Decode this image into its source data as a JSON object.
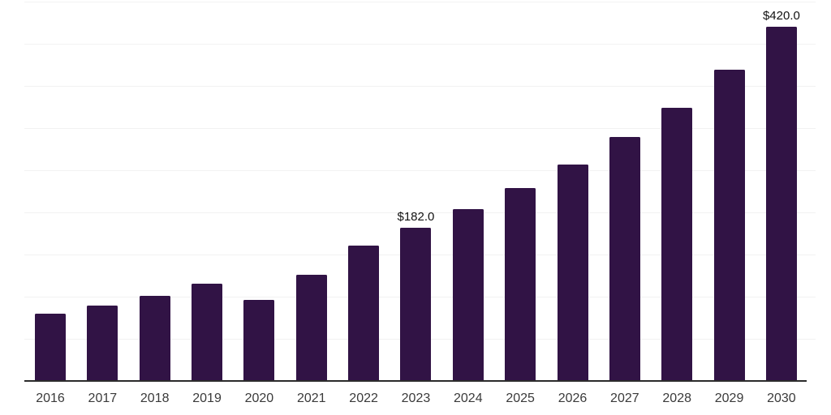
{
  "chart_data": {
    "type": "bar",
    "title": "",
    "xlabel": "",
    "ylabel": "",
    "categories": [
      "2016",
      "2017",
      "2018",
      "2019",
      "2020",
      "2021",
      "2022",
      "2023",
      "2024",
      "2025",
      "2026",
      "2027",
      "2028",
      "2029",
      "2030"
    ],
    "values": [
      80,
      89,
      101,
      115,
      96,
      126,
      161,
      182,
      204,
      229,
      257,
      289,
      324,
      369,
      420
    ],
    "bar_labels": [
      null,
      null,
      null,
      null,
      null,
      null,
      null,
      "$182.0",
      null,
      null,
      null,
      null,
      null,
      null,
      "$420.0"
    ],
    "ylim": [
      0,
      450
    ],
    "gridline_step": 50,
    "grid": "horizontal",
    "legend": "none",
    "y_axis_ticks_visible": false,
    "colors": {
      "bar": "#311345",
      "axis_line": "#2b2b2b",
      "gridline": "#f2f2f2",
      "tick_label": "#3a3a3a",
      "value_label": "#111111",
      "background": "#ffffff"
    }
  }
}
